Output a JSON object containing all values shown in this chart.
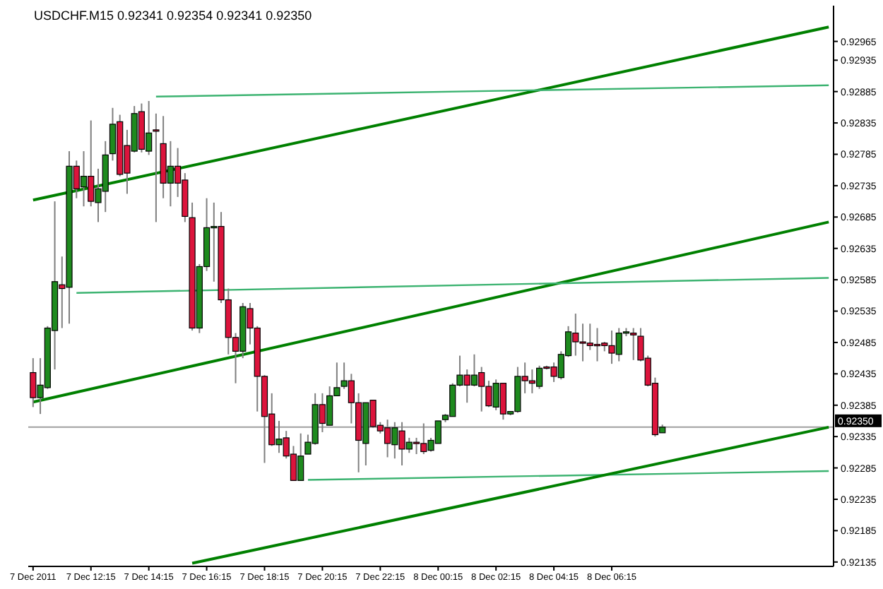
{
  "chart_data": {
    "type": "candlestick",
    "title": "USDCHF.M15 0.92341 0.92354 0.92341 0.92350",
    "x": [
      "2011-12-07T10:15",
      "2011-12-07T10:30",
      "2011-12-07T10:45",
      "2011-12-07T11:00",
      "2011-12-07T11:15",
      "2011-12-07T11:30",
      "2011-12-07T11:45",
      "2011-12-07T12:00",
      "2011-12-07T12:15",
      "2011-12-07T12:30",
      "2011-12-07T12:45",
      "2011-12-07T13:00",
      "2011-12-07T13:15",
      "2011-12-07T13:30",
      "2011-12-07T13:45",
      "2011-12-07T14:00",
      "2011-12-07T14:15",
      "2011-12-07T14:30",
      "2011-12-07T14:45",
      "2011-12-07T15:00",
      "2011-12-07T15:15",
      "2011-12-07T15:30",
      "2011-12-07T15:45",
      "2011-12-07T16:00",
      "2011-12-07T16:15",
      "2011-12-07T16:30",
      "2011-12-07T16:45",
      "2011-12-07T17:00",
      "2011-12-07T17:15",
      "2011-12-07T17:30",
      "2011-12-07T17:45",
      "2011-12-07T18:00",
      "2011-12-07T18:15",
      "2011-12-07T18:30",
      "2011-12-07T18:45",
      "2011-12-07T19:00",
      "2011-12-07T19:15",
      "2011-12-07T19:30",
      "2011-12-07T19:45",
      "2011-12-07T20:00",
      "2011-12-07T20:15",
      "2011-12-07T20:30",
      "2011-12-07T20:45",
      "2011-12-07T21:00",
      "2011-12-07T21:15",
      "2011-12-07T21:30",
      "2011-12-07T21:45",
      "2011-12-07T22:00",
      "2011-12-07T22:15",
      "2011-12-07T22:30",
      "2011-12-07T22:45",
      "2011-12-07T23:00",
      "2011-12-07T23:15",
      "2011-12-07T23:30",
      "2011-12-07T23:45",
      "2011-12-08T00:00",
      "2011-12-08T00:15",
      "2011-12-08T00:30",
      "2011-12-08T00:45",
      "2011-12-08T01:00",
      "2011-12-08T01:15",
      "2011-12-08T01:30",
      "2011-12-08T01:45",
      "2011-12-08T02:00",
      "2011-12-08T02:15",
      "2011-12-08T02:30",
      "2011-12-08T02:45",
      "2011-12-08T03:00",
      "2011-12-08T03:15",
      "2011-12-08T03:30",
      "2011-12-08T03:45",
      "2011-12-08T04:00",
      "2011-12-08T04:15",
      "2011-12-08T04:30",
      "2011-12-08T04:45",
      "2011-12-08T05:00",
      "2011-12-08T05:15",
      "2011-12-08T05:30",
      "2011-12-08T05:45",
      "2011-12-08T06:00",
      "2011-12-08T06:15",
      "2011-12-08T06:30",
      "2011-12-08T06:45",
      "2011-12-08T07:00",
      "2011-12-08T07:15",
      "2011-12-08T07:30",
      "2011-12-08T07:45",
      "2011-12-08T08:00"
    ],
    "ohlc": [
      [
        0.92437,
        0.9246,
        0.92382,
        0.92397
      ],
      [
        0.92397,
        0.9246,
        0.92371,
        0.92417
      ],
      [
        0.92413,
        0.92511,
        0.92411,
        0.92508
      ],
      [
        0.92504,
        0.9271,
        0.92442,
        0.92582
      ],
      [
        0.92577,
        0.92622,
        0.92508,
        0.92571
      ],
      [
        0.92573,
        0.9279,
        0.92515,
        0.92766
      ],
      [
        0.92766,
        0.92775,
        0.92715,
        0.9273
      ],
      [
        0.92733,
        0.9279,
        0.92702,
        0.9275
      ],
      [
        0.9275,
        0.92839,
        0.92702,
        0.9271
      ],
      [
        0.92708,
        0.92762,
        0.92677,
        0.9273
      ],
      [
        0.92726,
        0.92806,
        0.92693,
        0.92784
      ],
      [
        0.92786,
        0.92859,
        0.92775,
        0.92833
      ],
      [
        0.92837,
        0.92848,
        0.9275,
        0.92753
      ],
      [
        0.92799,
        0.92824,
        0.92722,
        0.92755
      ],
      [
        0.9279,
        0.92862,
        0.92788,
        0.9285
      ],
      [
        0.92853,
        0.92866,
        0.92788,
        0.92793
      ],
      [
        0.9279,
        0.9287,
        0.92784,
        0.92819
      ],
      [
        0.92824,
        0.9285,
        0.92677,
        0.92822
      ],
      [
        0.92802,
        0.92846,
        0.92715,
        0.92739
      ],
      [
        0.92739,
        0.92806,
        0.92702,
        0.92766
      ],
      [
        0.92766,
        0.92795,
        0.92717,
        0.92739
      ],
      [
        0.92744,
        0.92755,
        0.92677,
        0.92686
      ],
      [
        0.92684,
        0.92708,
        0.92504,
        0.92508
      ],
      [
        0.92508,
        0.9261,
        0.925,
        0.92606
      ],
      [
        0.92606,
        0.92715,
        0.92599,
        0.92668
      ],
      [
        0.92668,
        0.92708,
        0.92582,
        0.9267
      ],
      [
        0.9267,
        0.92693,
        0.92548,
        0.92553
      ],
      [
        0.92553,
        0.92571,
        0.92466,
        0.92493
      ],
      [
        0.92493,
        0.925,
        0.9242,
        0.92471
      ],
      [
        0.92471,
        0.92548,
        0.9246,
        0.92542
      ],
      [
        0.92539,
        0.92548,
        0.92482,
        0.92508
      ],
      [
        0.92508,
        0.92511,
        0.92375,
        0.92431
      ],
      [
        0.92431,
        0.92433,
        0.92293,
        0.92367
      ],
      [
        0.92371,
        0.92404,
        0.9232,
        0.92322
      ],
      [
        0.92322,
        0.9236,
        0.92309,
        0.92331
      ],
      [
        0.92333,
        0.92344,
        0.923,
        0.92304
      ],
      [
        0.92307,
        0.9232,
        0.92265,
        0.92265
      ],
      [
        0.92265,
        0.9234,
        0.92265,
        0.92304
      ],
      [
        0.92307,
        0.92338,
        0.92307,
        0.92326
      ],
      [
        0.92324,
        0.92404,
        0.92322,
        0.92386
      ],
      [
        0.92386,
        0.92404,
        0.92342,
        0.92356
      ],
      [
        0.92353,
        0.92415,
        0.92353,
        0.924
      ],
      [
        0.924,
        0.92453,
        0.924,
        0.92413
      ],
      [
        0.92415,
        0.92453,
        0.92411,
        0.92424
      ],
      [
        0.92424,
        0.92435,
        0.92356,
        0.92389
      ],
      [
        0.92389,
        0.92404,
        0.92278,
        0.92329
      ],
      [
        0.92324,
        0.92389,
        0.92289,
        0.92389
      ],
      [
        0.92393,
        0.92393,
        0.92349,
        0.92351
      ],
      [
        0.92353,
        0.92358,
        0.9234,
        0.92344
      ],
      [
        0.92349,
        0.92362,
        0.92302,
        0.92324
      ],
      [
        0.92322,
        0.92358,
        0.923,
        0.92349
      ],
      [
        0.92344,
        0.92358,
        0.92289,
        0.92315
      ],
      [
        0.92315,
        0.92333,
        0.92309,
        0.92326
      ],
      [
        0.92326,
        0.92333,
        0.92307,
        0.92324
      ],
      [
        0.92324,
        0.92356,
        0.92307,
        0.92311
      ],
      [
        0.92313,
        0.92333,
        0.92311,
        0.92329
      ],
      [
        0.92324,
        0.9236,
        0.92324,
        0.9236
      ],
      [
        0.92362,
        0.92371,
        0.92358,
        0.92369
      ],
      [
        0.92367,
        0.9242,
        0.92367,
        0.92417
      ],
      [
        0.92417,
        0.92464,
        0.92415,
        0.92433
      ],
      [
        0.92433,
        0.92442,
        0.92389,
        0.92417
      ],
      [
        0.92417,
        0.92466,
        0.92415,
        0.92433
      ],
      [
        0.92437,
        0.92446,
        0.92375,
        0.92415
      ],
      [
        0.92415,
        0.92424,
        0.92382,
        0.92384
      ],
      [
        0.92382,
        0.92426,
        0.92377,
        0.9242
      ],
      [
        0.9242,
        0.9242,
        0.92362,
        0.92371
      ],
      [
        0.92371,
        0.92375,
        0.92369,
        0.92375
      ],
      [
        0.92375,
        0.92446,
        0.92373,
        0.92431
      ],
      [
        0.92431,
        0.92453,
        0.92404,
        0.92424
      ],
      [
        0.92424,
        0.92442,
        0.92404,
        0.9242
      ],
      [
        0.92415,
        0.92448,
        0.92411,
        0.92444
      ],
      [
        0.92446,
        0.92448,
        0.92442,
        0.92444
      ],
      [
        0.92446,
        0.92453,
        0.92422,
        0.92431
      ],
      [
        0.92429,
        0.92471,
        0.92426,
        0.92466
      ],
      [
        0.92464,
        0.92511,
        0.92462,
        0.92502
      ],
      [
        0.925,
        0.92531,
        0.92464,
        0.92486
      ],
      [
        0.92486,
        0.92515,
        0.92455,
        0.92484
      ],
      [
        0.92484,
        0.92515,
        0.92473,
        0.9248
      ],
      [
        0.92482,
        0.92508,
        0.92455,
        0.9248
      ],
      [
        0.92484,
        0.92486,
        0.92471,
        0.9248
      ],
      [
        0.9248,
        0.92504,
        0.92451,
        0.92468
      ],
      [
        0.92466,
        0.92508,
        0.92455,
        0.925
      ],
      [
        0.925,
        0.92508,
        0.92495,
        0.92502
      ],
      [
        0.925,
        0.92508,
        0.92457,
        0.92497
      ],
      [
        0.92495,
        0.92508,
        0.92455,
        0.92457
      ],
      [
        0.9246,
        0.92464,
        0.92415,
        0.92417
      ],
      [
        0.9242,
        0.92429,
        0.92335,
        0.92338
      ],
      [
        0.92341,
        0.92354,
        0.92341,
        0.9235
      ]
    ],
    "series": [
      {
        "type": "line",
        "color": "#008000",
        "x": [
          "2011-12-07T10:15",
          "2011-12-08T13:45"
        ],
        "values": [
          0.92712,
          0.92988
        ]
      },
      {
        "type": "line",
        "color": "#3cb371",
        "x": [
          "2011-12-07T14:30",
          "2011-12-08T13:45"
        ],
        "values": [
          0.92877,
          0.92895
        ]
      },
      {
        "type": "line",
        "color": "#008000",
        "x": [
          "2011-12-07T10:15",
          "2011-12-08T13:45"
        ],
        "values": [
          0.9239,
          0.92677
        ]
      },
      {
        "type": "line",
        "color": "#3cb371",
        "x": [
          "2011-12-07T11:45",
          "2011-12-08T13:45"
        ],
        "values": [
          0.92564,
          0.92588
        ]
      },
      {
        "type": "line",
        "color": "#3cb371",
        "x": [
          "2011-12-07T19:45",
          "2011-12-08T13:45"
        ],
        "values": [
          0.92266,
          0.9228
        ]
      },
      {
        "type": "line",
        "color": "#008000",
        "x": [
          "2011-12-07T15:45",
          "2011-12-08T13:45"
        ],
        "values": [
          0.92133,
          0.9235
        ]
      }
    ],
    "xlim": [
      "2011-12-07T10:05",
      "2011-12-08T13:55"
    ],
    "xticks": [
      {
        "value": "2011-12-07T10:15",
        "label": "7 Dec 2011"
      },
      {
        "value": "2011-12-07T12:15",
        "label": "7 Dec 12:15"
      },
      {
        "value": "2011-12-07T14:15",
        "label": "7 Dec 14:15"
      },
      {
        "value": "2011-12-07T16:15",
        "label": "7 Dec 16:15"
      },
      {
        "value": "2011-12-07T18:15",
        "label": "7 Dec 18:15"
      },
      {
        "value": "2011-12-07T20:15",
        "label": "7 Dec 20:15"
      },
      {
        "value": "2011-12-07T22:15",
        "label": "7 Dec 22:15"
      },
      {
        "value": "2011-12-08T00:15",
        "label": "8 Dec 00:15"
      },
      {
        "value": "2011-12-08T02:15",
        "label": "8 Dec 02:15"
      },
      {
        "value": "2011-12-08T04:15",
        "label": "8 Dec 04:15"
      },
      {
        "value": "2011-12-08T06:15",
        "label": "8 Dec 06:15"
      }
    ],
    "ylim": [
      0.92128,
      0.93022
    ],
    "yticks": [
      0.92135,
      0.92185,
      0.92235,
      0.92285,
      0.92335,
      0.92385,
      0.92435,
      0.92485,
      0.92535,
      0.92585,
      0.92635,
      0.92685,
      0.92735,
      0.92785,
      0.92835,
      0.92885,
      0.92935,
      0.92965
    ],
    "ref_lines": [
      {
        "axis": "y",
        "value": 0.9235,
        "label": "0.92350",
        "color": "#a0a0a0"
      }
    ]
  }
}
